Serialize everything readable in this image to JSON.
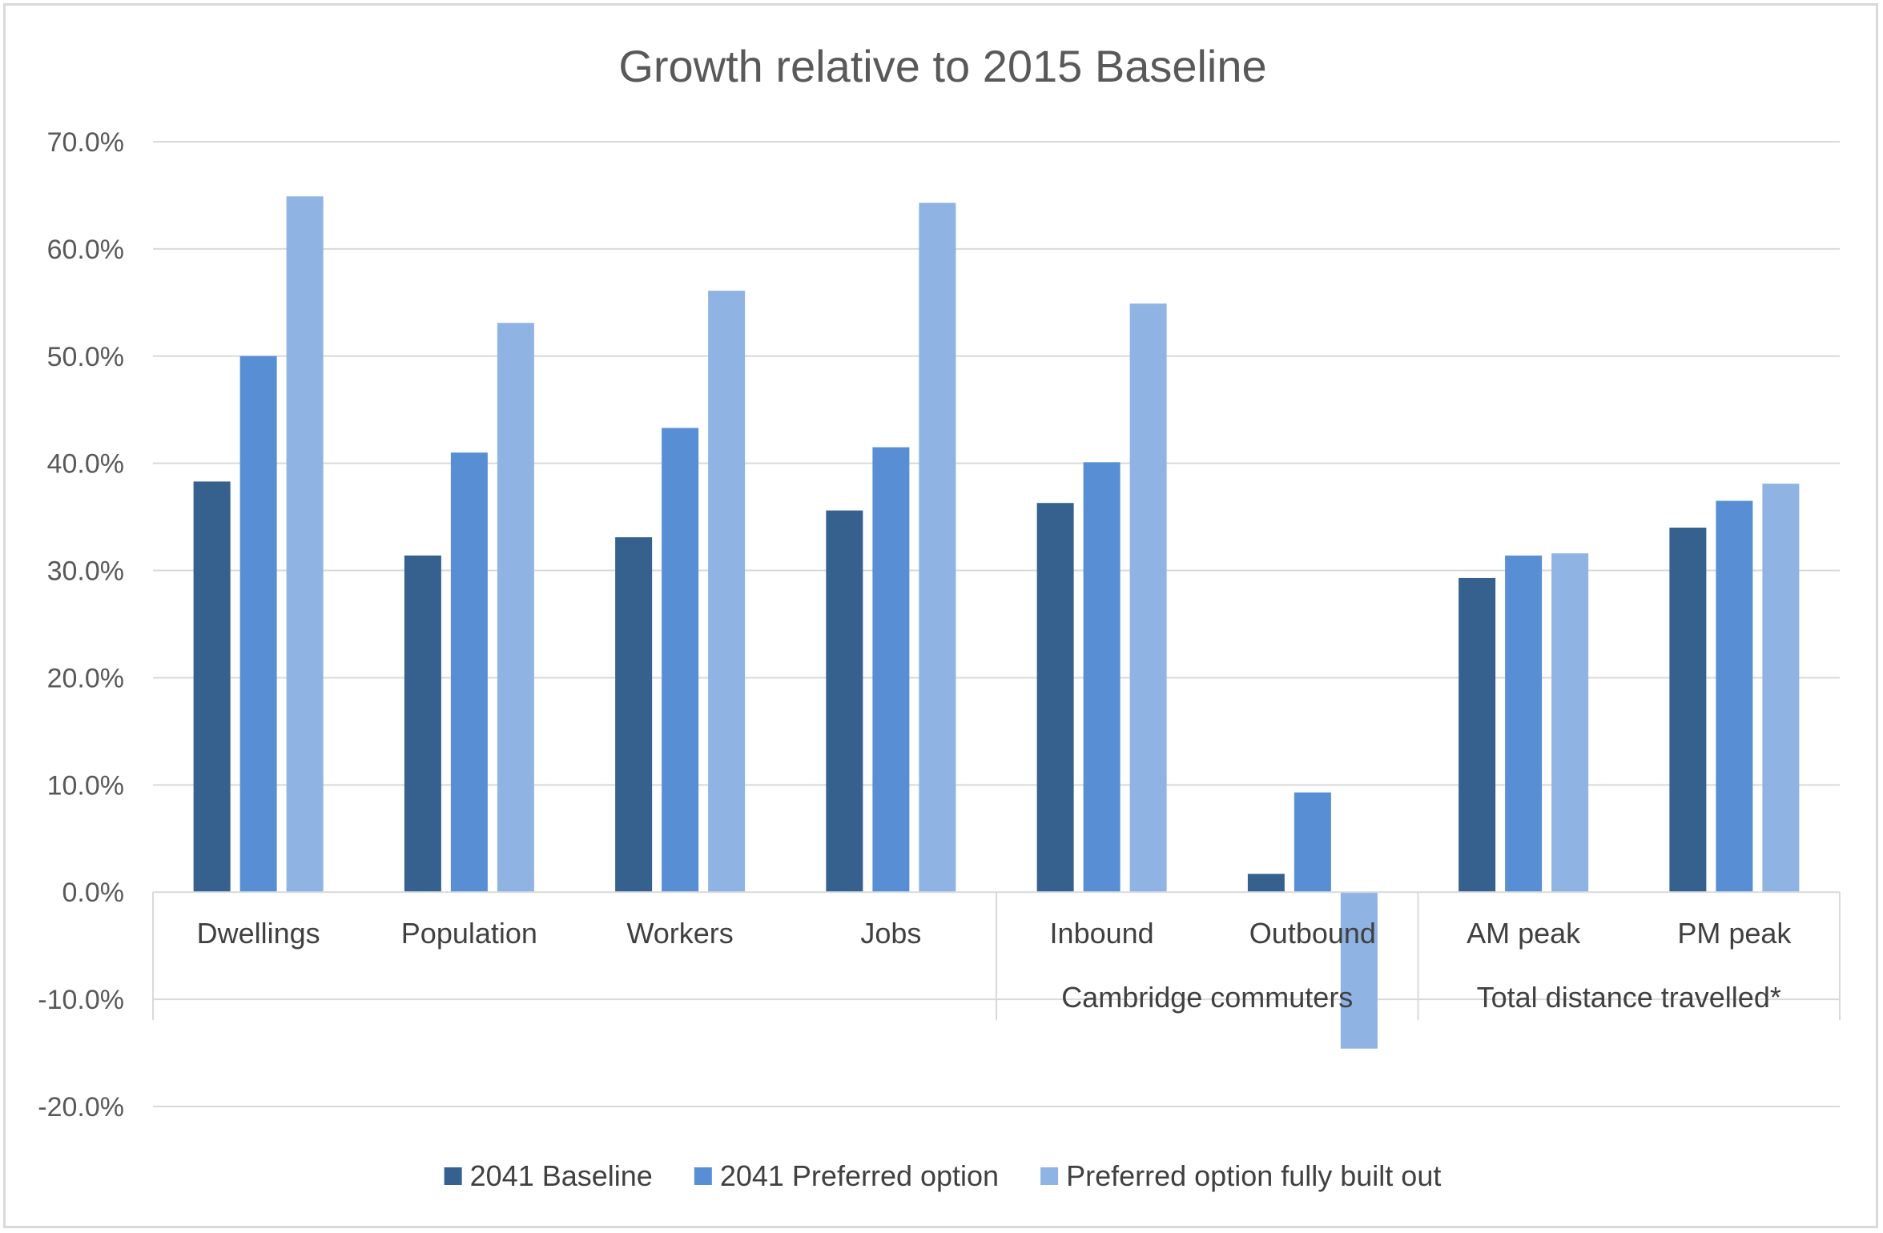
{
  "chart_data": {
    "type": "bar",
    "title": "Growth relative to 2015 Baseline",
    "xlabel": "",
    "ylabel": "",
    "ylim": [
      -20,
      70
    ],
    "ytick_step": 10,
    "ytick_suffix": "%",
    "ytick_decimals": 1,
    "grid": true,
    "legend_position": "bottom",
    "categories": [
      "Dwellings",
      "Population",
      "Workers",
      "Jobs",
      "Inbound",
      "Outbound",
      "AM peak",
      "PM peak"
    ],
    "groups": [
      {
        "label": "",
        "categories": [
          "Dwellings",
          "Population",
          "Workers",
          "Jobs"
        ]
      },
      {
        "label": "Cambridge commuters",
        "categories": [
          "Inbound",
          "Outbound"
        ]
      },
      {
        "label": "Total distance travelled*",
        "categories": [
          "AM peak",
          "PM peak"
        ]
      }
    ],
    "series": [
      {
        "name": "2041 Baseline",
        "color": "#36618f",
        "values": [
          38.3,
          31.4,
          33.1,
          35.6,
          36.3,
          1.7,
          29.3,
          34.0
        ]
      },
      {
        "name": "2041 Preferred option",
        "color": "#588fd4",
        "values": [
          50.0,
          41.0,
          43.3,
          41.5,
          40.1,
          9.3,
          31.4,
          36.5
        ]
      },
      {
        "name": "Preferred option fully built out",
        "color": "#8fb3e2",
        "values": [
          64.9,
          53.1,
          56.1,
          64.3,
          54.9,
          -14.6,
          31.6,
          38.1
        ]
      }
    ]
  }
}
